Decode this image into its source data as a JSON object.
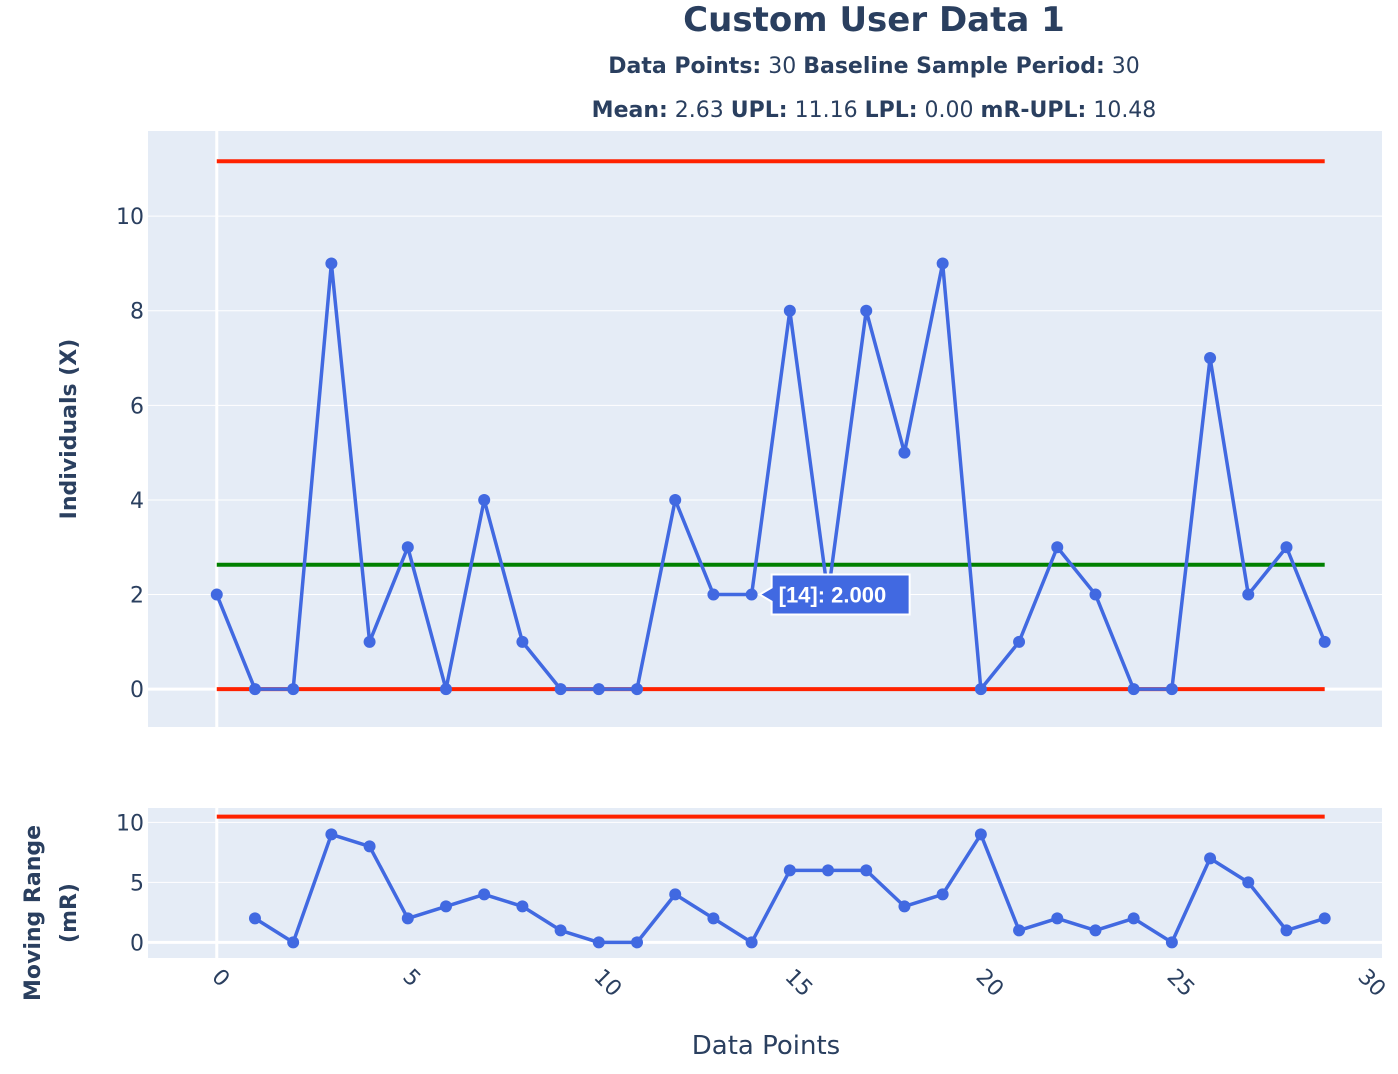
{
  "header": {
    "title": "Custom User Data 1",
    "line1": [
      {
        "label": "Data Points:",
        "value": " 30 "
      },
      {
        "label": "Baseline Sample Period:",
        "value": " 30"
      }
    ],
    "line2": [
      {
        "label": "Mean:",
        "value": " 2.63 "
      },
      {
        "label": "UPL:",
        "value": " 11.16 "
      },
      {
        "label": "LPL:",
        "value": " 0.00 "
      },
      {
        "label": "mR-UPL:",
        "value": " 10.48"
      }
    ]
  },
  "colors": {
    "series": "#4169e1",
    "limit": "#ff2200",
    "mean": "#008000",
    "plot_bg": "#e5ecf6",
    "grid": "#ffffff"
  },
  "tooltip": {
    "text": "[14]: 2.000",
    "x": 14,
    "y": 2
  },
  "chart_data": [
    {
      "type": "line",
      "name": "individuals",
      "ylabel": "Individuals (X)",
      "x": [
        0,
        1,
        2,
        3,
        4,
        5,
        6,
        7,
        8,
        9,
        10,
        11,
        12,
        13,
        14,
        15,
        16,
        17,
        18,
        19,
        20,
        21,
        22,
        23,
        24,
        25,
        26,
        27,
        28,
        29
      ],
      "values": [
        2,
        0,
        0,
        9,
        1,
        3,
        0,
        4,
        1,
        0,
        0,
        0,
        4,
        2,
        2,
        8,
        2,
        8,
        5,
        9,
        0,
        1,
        3,
        2,
        0,
        0,
        7,
        2,
        3,
        1
      ],
      "mean": 2.63,
      "upl": 11.16,
      "lpl": 0.0,
      "xlim": [
        -1.8,
        30.5
      ],
      "ylim": [
        -0.8,
        11.8
      ],
      "yticks": [
        0,
        2,
        4,
        6,
        8,
        10
      ]
    },
    {
      "type": "line",
      "name": "moving-range",
      "ylabel": "Moving Range (mR)",
      "xlabel": "Data Points",
      "x": [
        1,
        2,
        3,
        4,
        5,
        6,
        7,
        8,
        9,
        10,
        11,
        12,
        13,
        14,
        15,
        16,
        17,
        18,
        19,
        20,
        21,
        22,
        23,
        24,
        25,
        26,
        27,
        28,
        29
      ],
      "values": [
        2,
        0,
        9,
        8,
        2,
        3,
        4,
        3,
        1,
        0,
        0,
        4,
        2,
        0,
        6,
        6,
        6,
        3,
        4,
        9,
        1,
        2,
        1,
        2,
        0,
        7,
        5,
        1,
        2
      ],
      "upl": 10.48,
      "xlim": [
        -1.8,
        30.5
      ],
      "ylim": [
        -1.3,
        11.2
      ],
      "yticks": [
        0,
        5,
        10
      ],
      "xticks": [
        0,
        5,
        10,
        15,
        20,
        25,
        30
      ]
    }
  ]
}
